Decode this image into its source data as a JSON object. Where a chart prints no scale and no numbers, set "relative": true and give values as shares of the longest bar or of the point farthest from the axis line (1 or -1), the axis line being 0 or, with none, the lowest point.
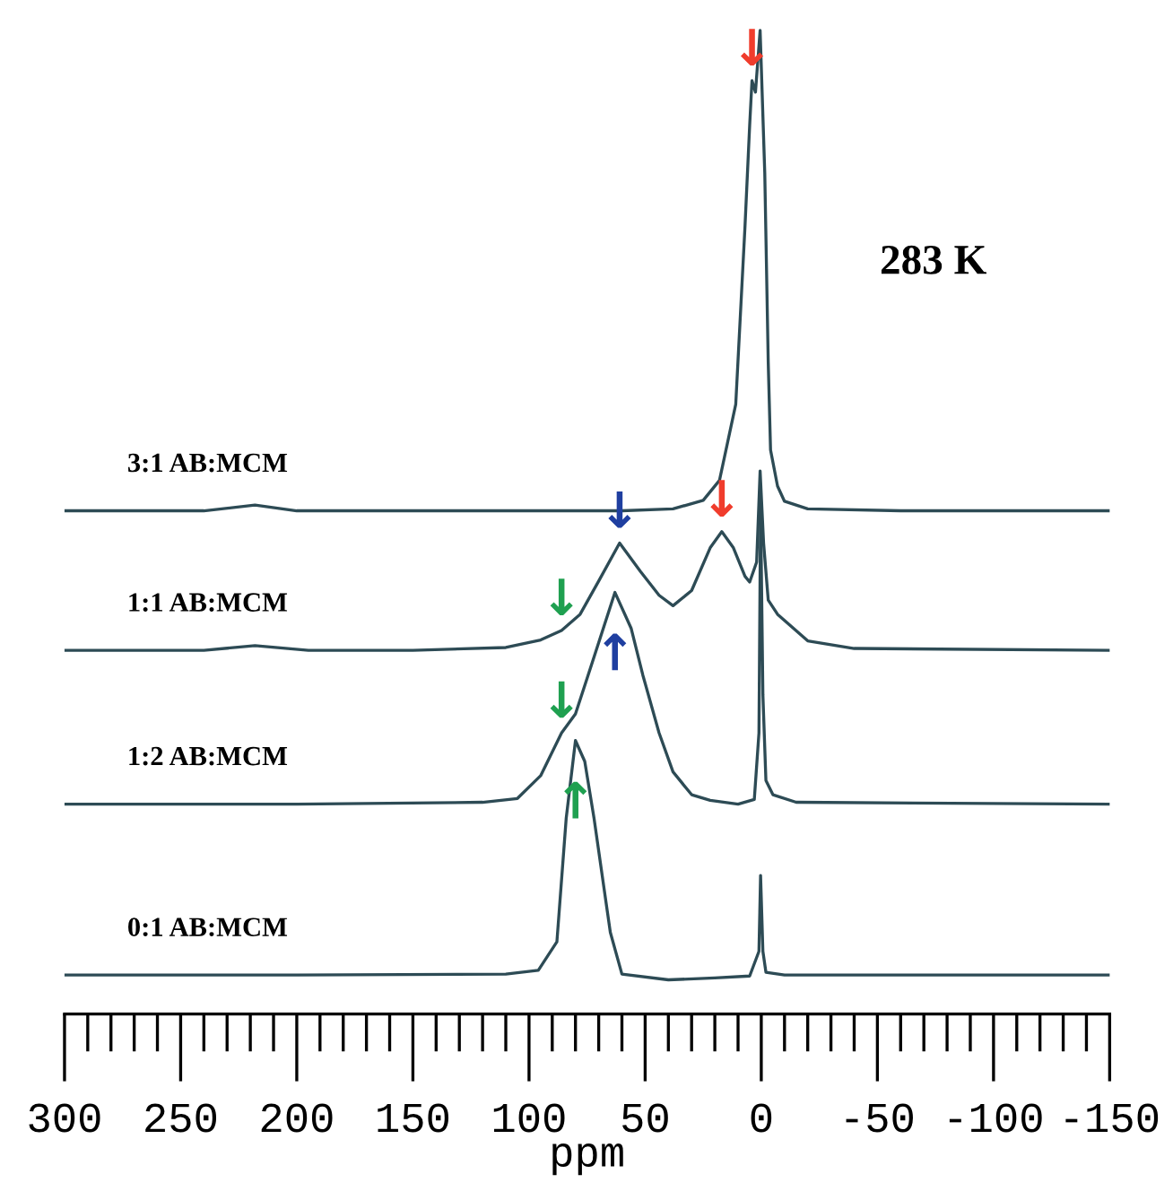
{
  "chart_data": {
    "type": "line",
    "relative": true,
    "xlabel": "ppm",
    "annotations": [
      "283 K",
      {
        "text": "↓",
        "x": 4,
        "y": 0.947
      },
      {
        "text": "↓",
        "x": 61,
        "y": 0.46
      },
      {
        "text": "↓",
        "x": 17,
        "y": 0.472
      },
      {
        "text": "↓",
        "x": 86,
        "y": 0.368
      },
      {
        "text": "↓",
        "x": 86,
        "y": 0.26
      },
      {
        "text": "↑",
        "x": 63,
        "y": 0.408
      },
      {
        "text": "↑",
        "x": 80,
        "y": 0.252
      }
    ],
    "xlim": [
      300,
      -150
    ],
    "xticks": [
      300,
      250,
      200,
      150,
      100,
      50,
      0,
      -50,
      -100,
      -150
    ],
    "tick_labels": "x",
    "grid": false,
    "legend": false,
    "marker": "none",
    "line_style": "solid",
    "series": [
      {
        "name": "3:1 AB:MCM",
        "color": "#2d4b55",
        "x": [
          300,
          240,
          218,
          200,
          150,
          100,
          60,
          38,
          25,
          18,
          11,
          7,
          5,
          4,
          2.5,
          0.5,
          -1.5,
          -3,
          -4,
          -7,
          -10,
          -20,
          -60,
          -100,
          -150
        ],
        "values": [
          0.494,
          0.494,
          0.5,
          0.494,
          0.494,
          0.494,
          0.494,
          0.496,
          0.505,
          0.526,
          0.606,
          0.794,
          0.9,
          0.947,
          0.935,
          1.0,
          0.85,
          0.65,
          0.558,
          0.52,
          0.504,
          0.496,
          0.494,
          0.494,
          0.494
        ]
      },
      {
        "name": "1:1 AB:MCM",
        "color": "#2d4b55",
        "x": [
          300,
          240,
          218,
          195,
          150,
          110,
          95,
          86,
          78,
          70,
          61,
          52,
          44,
          38,
          30,
          22,
          17,
          12,
          7,
          5,
          2,
          0.5,
          -1,
          -3,
          -7,
          -20,
          -40,
          -150
        ],
        "values": [
          0.347,
          0.347,
          0.352,
          0.347,
          0.347,
          0.35,
          0.358,
          0.368,
          0.385,
          0.42,
          0.46,
          0.43,
          0.405,
          0.394,
          0.41,
          0.455,
          0.472,
          0.455,
          0.425,
          0.419,
          0.44,
          0.536,
          0.46,
          0.4,
          0.385,
          0.357,
          0.349,
          0.347
        ]
      },
      {
        "name": "1:2 AB:MCM",
        "color": "#2d4b55",
        "x": [
          300,
          200,
          120,
          105,
          95,
          86,
          80,
          72,
          63,
          56,
          51,
          44,
          38,
          30,
          22,
          10,
          3,
          1,
          0.3,
          -0.7,
          -2,
          -5,
          -15,
          -150
        ],
        "values": [
          0.185,
          0.185,
          0.187,
          0.191,
          0.215,
          0.26,
          0.28,
          0.34,
          0.408,
          0.37,
          0.321,
          0.26,
          0.219,
          0.195,
          0.189,
          0.185,
          0.19,
          0.26,
          0.5,
          0.3,
          0.21,
          0.195,
          0.187,
          0.185
        ]
      },
      {
        "name": "0:1 AB:MCM",
        "color": "#2d4b55",
        "x": [
          300,
          200,
          110,
          96,
          88,
          84,
          80,
          76,
          72,
          65,
          60,
          40,
          20,
          5,
          1,
          0.3,
          -0.7,
          -2,
          -10,
          -150
        ],
        "values": [
          0.005,
          0.005,
          0.006,
          0.01,
          0.04,
          0.17,
          0.252,
          0.23,
          0.17,
          0.05,
          0.006,
          0,
          0.002,
          0.004,
          0.03,
          0.11,
          0.03,
          0.008,
          0.005,
          0.005
        ]
      }
    ]
  }
}
